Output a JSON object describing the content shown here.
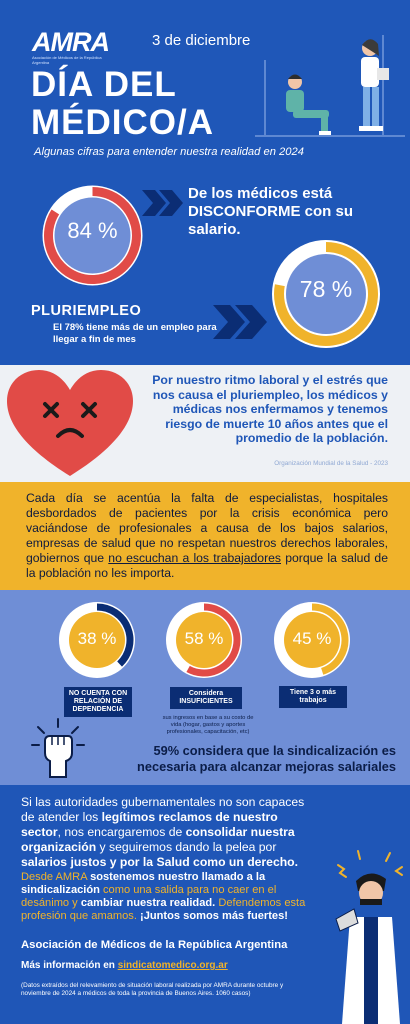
{
  "header": {
    "logo": "AMRA",
    "logo_tagline": "Asociación de Médicos de la República Argentina",
    "date": "3 de diciembre",
    "title_line1": "DÍA DEL",
    "title_line2": "MÉDICO/A",
    "subtitle": "Algunas cifras para entender nuestra realidad en 2024"
  },
  "stats_top": {
    "salary": {
      "value_label": "84 %",
      "value": 84,
      "text": "De los médicos está DISCONFORME con su salario."
    },
    "pluri": {
      "value_label": "78 %",
      "value": 78,
      "heading": "PLURIEMPLEO",
      "text": "El 78% tiene más de un empleo para llegar a fin de mes"
    }
  },
  "health": {
    "text": "Por nuestro ritmo laboral y el estrés que nos causa el pluriempleo, los médicos y médicas nos enfermamos y tenemos riesgo de muerte 10 años antes que el promedio de la población.",
    "source": "Organización Mundial de la Salud - 2023"
  },
  "paragraph": {
    "before": "Cada día se acentúa la falta de especialistas, hospitales desbordados de pacientes por la crisis económica pero vaciándose de profesionales a causa de los bajos salarios, empresas de salud que no respetan nuestros derechos laborales, gobiernos que ",
    "underlined": "no escuchan a los trabajadores",
    "after": " porque la salud de la población no les importa."
  },
  "stats": [
    {
      "value_label": "38 %",
      "value": 38,
      "label": "NO CUENTA CON RELACIÓN DE DEPENDENCIA",
      "note": ""
    },
    {
      "value_label": "58 %",
      "value": 58,
      "label": "Considera INSUFICIENTES",
      "note": "sus ingresos en base a su costo de vida (hogar, gastos y aportes profesionales, capacitación, etc)"
    },
    {
      "value_label": "45 %",
      "value": 45,
      "label": "Tiene 3 o más trabajos",
      "note": ""
    }
  ],
  "union_stat": "59% considera que la sindicalización es necesaria para alcanzar mejoras salariales",
  "closing": {
    "p1_a": "Si las autoridades gubernamentales no son capaces de atender los ",
    "p1_b": "legítimos reclamos de nuestro sector",
    "p1_c": ", nos encargaremos de ",
    "p1_d": "consolidar nuestra organización",
    "p1_e": " y seguiremos dando la pelea por ",
    "p1_f": "salarios justos y por la Salud como un derecho.",
    "p2_a": "Desde AMRA ",
    "p2_b": "sostenemos nuestro llamado a la sindicalización",
    "p2_c": " como una salida para no caer en el desánimo y ",
    "p2_d": "cambiar nuestra realidad.",
    "p2_e": " Defendemos esta profesión que amamos. ",
    "p2_f": "¡Juntos somos más fuertes!"
  },
  "footer": {
    "association": "Asociación de Médicos de la República Argentina",
    "info_label": "Más información en ",
    "info_link": "sindicatomedico.org.ar",
    "note": "(Datos extraídos del relevamiento de situación laboral realizada por AMRA durante octubre y noviembre de 2024 a médicos de toda la provincia de Buenos Aires. 1060 casos)"
  },
  "colors": {
    "blue": "#1f56b7",
    "yellow": "#f0b32b",
    "red": "#e14b47",
    "light_blue": "#6f8ed6",
    "navy": "#0b2d74"
  }
}
